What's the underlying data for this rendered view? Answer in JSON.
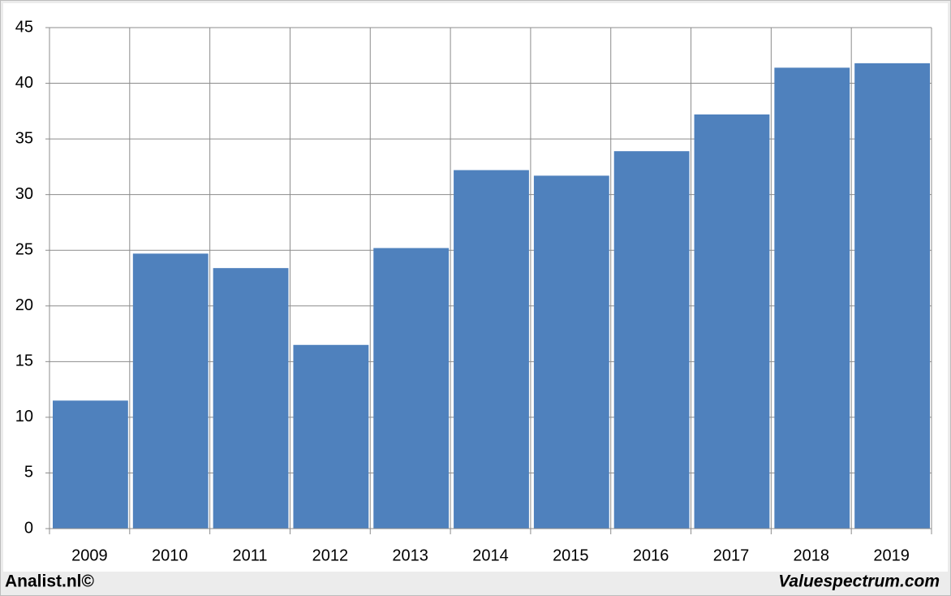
{
  "chart_data": {
    "type": "bar",
    "categories": [
      "2009",
      "2010",
      "2011",
      "2012",
      "2013",
      "2014",
      "2015",
      "2016",
      "2017",
      "2018",
      "2019"
    ],
    "values": [
      11.5,
      24.7,
      23.4,
      16.5,
      25.2,
      32.2,
      31.7,
      33.9,
      37.2,
      41.4,
      41.8
    ],
    "color": "#4f81bd",
    "ylim": [
      0,
      45
    ],
    "yticks": [
      0,
      5,
      10,
      15,
      20,
      25,
      30,
      35,
      40,
      45
    ],
    "grid": true
  },
  "footer": {
    "left": "Analist.nl©",
    "right": "Valuespectrum.com"
  }
}
